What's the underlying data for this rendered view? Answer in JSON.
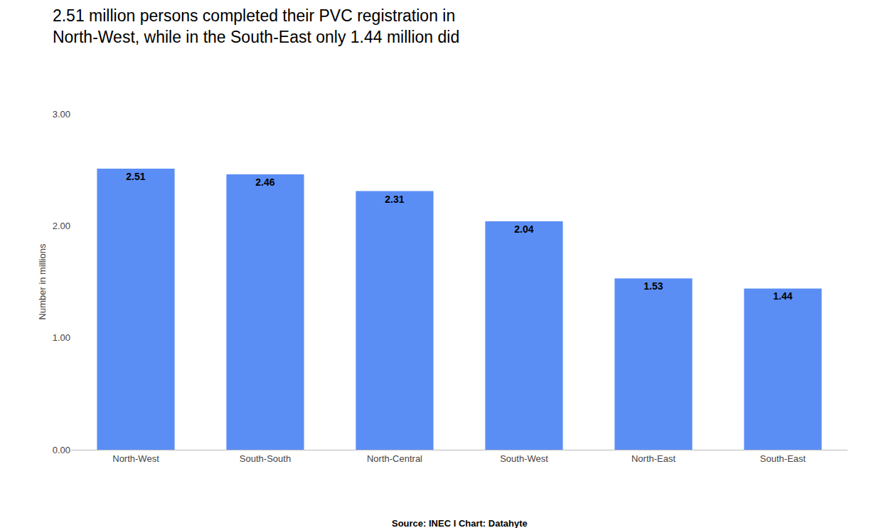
{
  "chart_data": {
    "type": "bar",
    "title": "2.51 million persons completed their PVC registration in\nNorth-West, while in the South-East only 1.44 million did",
    "categories": [
      "North-West",
      "South-South",
      "North-Central",
      "South-West",
      "North-East",
      "South-East"
    ],
    "values": [
      2.51,
      2.46,
      2.31,
      2.04,
      1.53,
      1.44
    ],
    "color": "#5b8ef5",
    "ylabel": "Number in millions",
    "ylim": [
      0,
      3.0
    ],
    "yticks": [
      {
        "value": 0,
        "label": "0.00"
      },
      {
        "value": 1,
        "label": "1.00"
      },
      {
        "value": 2,
        "label": "2.00"
      },
      {
        "value": 3,
        "label": "3.00"
      }
    ],
    "grid": false,
    "data_labels": true,
    "annotations": [
      "Source: INEC I Chart: Datahyte"
    ]
  }
}
